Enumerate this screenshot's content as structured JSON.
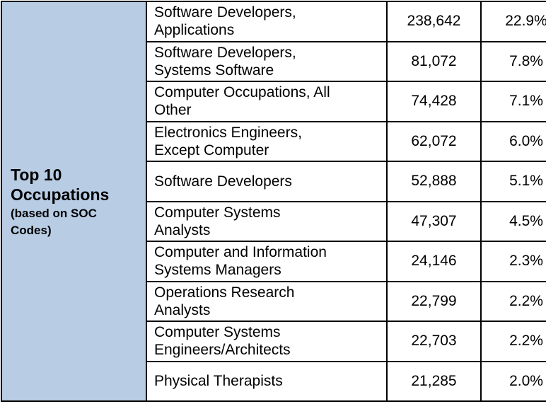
{
  "sidebar": {
    "title_line1": "Top 10",
    "title_line2": "Occupations",
    "sub_line1": "(based on SOC",
    "sub_line2": "Codes)",
    "background": "#b8cce4"
  },
  "rows": [
    {
      "line1": "Software Developers,",
      "line2": "Applications",
      "count": "238,642",
      "pct": "22.9%"
    },
    {
      "line1": "Software Developers,",
      "line2": "Systems Software",
      "count": "81,072",
      "pct": "7.8%"
    },
    {
      "line1": "Computer Occupations, All",
      "line2": "Other",
      "count": "74,428",
      "pct": "7.1%"
    },
    {
      "line1": "Electronics Engineers,",
      "line2": "Except Computer",
      "count": "62,072",
      "pct": "6.0%"
    },
    {
      "line1": "Software Developers",
      "line2": "",
      "count": "52,888",
      "pct": "5.1%"
    },
    {
      "line1": "Computer Systems",
      "line2": "Analysts",
      "count": "47,307",
      "pct": "4.5%"
    },
    {
      "line1": "Computer and Information",
      "line2": "Systems Managers",
      "count": "24,146",
      "pct": "2.3%"
    },
    {
      "line1": "Operations Research",
      "line2": "Analysts",
      "count": "22,799",
      "pct": "2.2%"
    },
    {
      "line1": "Computer Systems",
      "line2": "Engineers/Architects",
      "count": "22,703",
      "pct": "2.2%"
    },
    {
      "line1": "Physical Therapists",
      "line2": "",
      "count": "21,285",
      "pct": "2.0%"
    }
  ]
}
